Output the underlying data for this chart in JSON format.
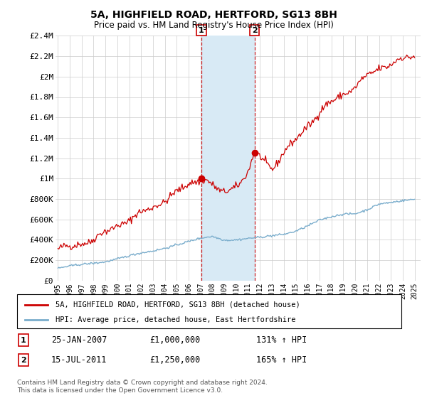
{
  "title": "5A, HIGHFIELD ROAD, HERTFORD, SG13 8BH",
  "subtitle": "Price paid vs. HM Land Registry's House Price Index (HPI)",
  "ylabel_ticks": [
    "£0",
    "£200K",
    "£400K",
    "£600K",
    "£800K",
    "£1M",
    "£1.2M",
    "£1.4M",
    "£1.6M",
    "£1.8M",
    "£2M",
    "£2.2M",
    "£2.4M"
  ],
  "ytick_values": [
    0,
    200000,
    400000,
    600000,
    800000,
    1000000,
    1200000,
    1400000,
    1600000,
    1800000,
    2000000,
    2200000,
    2400000
  ],
  "ylim": [
    0,
    2400000
  ],
  "xlim_start": 1994.8,
  "xlim_end": 2025.5,
  "sale1_x": 2007.07,
  "sale1_y": 1000000,
  "sale2_x": 2011.54,
  "sale2_y": 1250000,
  "line1_color": "#cc0000",
  "line2_color": "#7aadcc",
  "shade_color": "#d8eaf5",
  "legend1_label": "5A, HIGHFIELD ROAD, HERTFORD, SG13 8BH (detached house)",
  "legend2_label": "HPI: Average price, detached house, East Hertfordshire",
  "sale1_date": "25-JAN-2007",
  "sale1_price": "£1,000,000",
  "sale1_hpi": "131% ↑ HPI",
  "sale2_date": "15-JUL-2011",
  "sale2_price": "£1,250,000",
  "sale2_hpi": "165% ↑ HPI",
  "footer1": "Contains HM Land Registry data © Crown copyright and database right 2024.",
  "footer2": "This data is licensed under the Open Government Licence v3.0.",
  "background_color": "#ffffff",
  "grid_color": "#cccccc"
}
